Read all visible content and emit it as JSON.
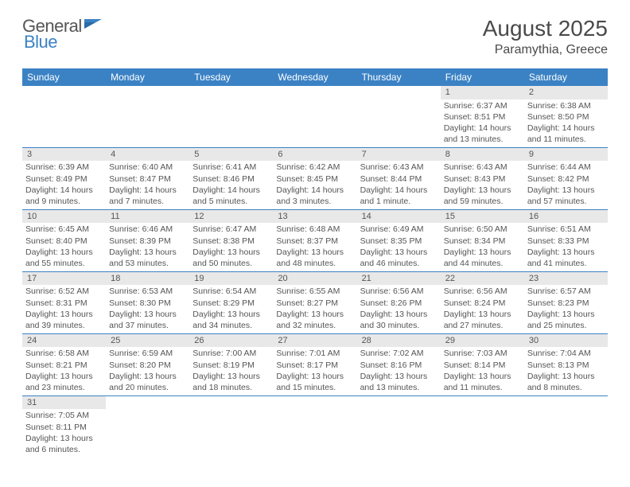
{
  "logo": {
    "text1": "General",
    "text2": "Blue"
  },
  "title": "August 2025",
  "location": "Paramythia, Greece",
  "colors": {
    "header_bg": "#3b82c4",
    "header_text": "#ffffff",
    "daynum_bg": "#e8e8e8",
    "row_divider": "#3b82c4",
    "body_text": "#555555",
    "logo_blue": "#3b82c4"
  },
  "day_headers": [
    "Sunday",
    "Monday",
    "Tuesday",
    "Wednesday",
    "Thursday",
    "Friday",
    "Saturday"
  ],
  "weeks": [
    [
      {
        "n": "",
        "sr": "",
        "ss": "",
        "dl": ""
      },
      {
        "n": "",
        "sr": "",
        "ss": "",
        "dl": ""
      },
      {
        "n": "",
        "sr": "",
        "ss": "",
        "dl": ""
      },
      {
        "n": "",
        "sr": "",
        "ss": "",
        "dl": ""
      },
      {
        "n": "",
        "sr": "",
        "ss": "",
        "dl": ""
      },
      {
        "n": "1",
        "sr": "Sunrise: 6:37 AM",
        "ss": "Sunset: 8:51 PM",
        "dl": "Daylight: 14 hours and 13 minutes."
      },
      {
        "n": "2",
        "sr": "Sunrise: 6:38 AM",
        "ss": "Sunset: 8:50 PM",
        "dl": "Daylight: 14 hours and 11 minutes."
      }
    ],
    [
      {
        "n": "3",
        "sr": "Sunrise: 6:39 AM",
        "ss": "Sunset: 8:49 PM",
        "dl": "Daylight: 14 hours and 9 minutes."
      },
      {
        "n": "4",
        "sr": "Sunrise: 6:40 AM",
        "ss": "Sunset: 8:47 PM",
        "dl": "Daylight: 14 hours and 7 minutes."
      },
      {
        "n": "5",
        "sr": "Sunrise: 6:41 AM",
        "ss": "Sunset: 8:46 PM",
        "dl": "Daylight: 14 hours and 5 minutes."
      },
      {
        "n": "6",
        "sr": "Sunrise: 6:42 AM",
        "ss": "Sunset: 8:45 PM",
        "dl": "Daylight: 14 hours and 3 minutes."
      },
      {
        "n": "7",
        "sr": "Sunrise: 6:43 AM",
        "ss": "Sunset: 8:44 PM",
        "dl": "Daylight: 14 hours and 1 minute."
      },
      {
        "n": "8",
        "sr": "Sunrise: 6:43 AM",
        "ss": "Sunset: 8:43 PM",
        "dl": "Daylight: 13 hours and 59 minutes."
      },
      {
        "n": "9",
        "sr": "Sunrise: 6:44 AM",
        "ss": "Sunset: 8:42 PM",
        "dl": "Daylight: 13 hours and 57 minutes."
      }
    ],
    [
      {
        "n": "10",
        "sr": "Sunrise: 6:45 AM",
        "ss": "Sunset: 8:40 PM",
        "dl": "Daylight: 13 hours and 55 minutes."
      },
      {
        "n": "11",
        "sr": "Sunrise: 6:46 AM",
        "ss": "Sunset: 8:39 PM",
        "dl": "Daylight: 13 hours and 53 minutes."
      },
      {
        "n": "12",
        "sr": "Sunrise: 6:47 AM",
        "ss": "Sunset: 8:38 PM",
        "dl": "Daylight: 13 hours and 50 minutes."
      },
      {
        "n": "13",
        "sr": "Sunrise: 6:48 AM",
        "ss": "Sunset: 8:37 PM",
        "dl": "Daylight: 13 hours and 48 minutes."
      },
      {
        "n": "14",
        "sr": "Sunrise: 6:49 AM",
        "ss": "Sunset: 8:35 PM",
        "dl": "Daylight: 13 hours and 46 minutes."
      },
      {
        "n": "15",
        "sr": "Sunrise: 6:50 AM",
        "ss": "Sunset: 8:34 PM",
        "dl": "Daylight: 13 hours and 44 minutes."
      },
      {
        "n": "16",
        "sr": "Sunrise: 6:51 AM",
        "ss": "Sunset: 8:33 PM",
        "dl": "Daylight: 13 hours and 41 minutes."
      }
    ],
    [
      {
        "n": "17",
        "sr": "Sunrise: 6:52 AM",
        "ss": "Sunset: 8:31 PM",
        "dl": "Daylight: 13 hours and 39 minutes."
      },
      {
        "n": "18",
        "sr": "Sunrise: 6:53 AM",
        "ss": "Sunset: 8:30 PM",
        "dl": "Daylight: 13 hours and 37 minutes."
      },
      {
        "n": "19",
        "sr": "Sunrise: 6:54 AM",
        "ss": "Sunset: 8:29 PM",
        "dl": "Daylight: 13 hours and 34 minutes."
      },
      {
        "n": "20",
        "sr": "Sunrise: 6:55 AM",
        "ss": "Sunset: 8:27 PM",
        "dl": "Daylight: 13 hours and 32 minutes."
      },
      {
        "n": "21",
        "sr": "Sunrise: 6:56 AM",
        "ss": "Sunset: 8:26 PM",
        "dl": "Daylight: 13 hours and 30 minutes."
      },
      {
        "n": "22",
        "sr": "Sunrise: 6:56 AM",
        "ss": "Sunset: 8:24 PM",
        "dl": "Daylight: 13 hours and 27 minutes."
      },
      {
        "n": "23",
        "sr": "Sunrise: 6:57 AM",
        "ss": "Sunset: 8:23 PM",
        "dl": "Daylight: 13 hours and 25 minutes."
      }
    ],
    [
      {
        "n": "24",
        "sr": "Sunrise: 6:58 AM",
        "ss": "Sunset: 8:21 PM",
        "dl": "Daylight: 13 hours and 23 minutes."
      },
      {
        "n": "25",
        "sr": "Sunrise: 6:59 AM",
        "ss": "Sunset: 8:20 PM",
        "dl": "Daylight: 13 hours and 20 minutes."
      },
      {
        "n": "26",
        "sr": "Sunrise: 7:00 AM",
        "ss": "Sunset: 8:19 PM",
        "dl": "Daylight: 13 hours and 18 minutes."
      },
      {
        "n": "27",
        "sr": "Sunrise: 7:01 AM",
        "ss": "Sunset: 8:17 PM",
        "dl": "Daylight: 13 hours and 15 minutes."
      },
      {
        "n": "28",
        "sr": "Sunrise: 7:02 AM",
        "ss": "Sunset: 8:16 PM",
        "dl": "Daylight: 13 hours and 13 minutes."
      },
      {
        "n": "29",
        "sr": "Sunrise: 7:03 AM",
        "ss": "Sunset: 8:14 PM",
        "dl": "Daylight: 13 hours and 11 minutes."
      },
      {
        "n": "30",
        "sr": "Sunrise: 7:04 AM",
        "ss": "Sunset: 8:13 PM",
        "dl": "Daylight: 13 hours and 8 minutes."
      }
    ],
    [
      {
        "n": "31",
        "sr": "Sunrise: 7:05 AM",
        "ss": "Sunset: 8:11 PM",
        "dl": "Daylight: 13 hours and 6 minutes."
      },
      {
        "n": "",
        "sr": "",
        "ss": "",
        "dl": ""
      },
      {
        "n": "",
        "sr": "",
        "ss": "",
        "dl": ""
      },
      {
        "n": "",
        "sr": "",
        "ss": "",
        "dl": ""
      },
      {
        "n": "",
        "sr": "",
        "ss": "",
        "dl": ""
      },
      {
        "n": "",
        "sr": "",
        "ss": "",
        "dl": ""
      },
      {
        "n": "",
        "sr": "",
        "ss": "",
        "dl": ""
      }
    ]
  ]
}
